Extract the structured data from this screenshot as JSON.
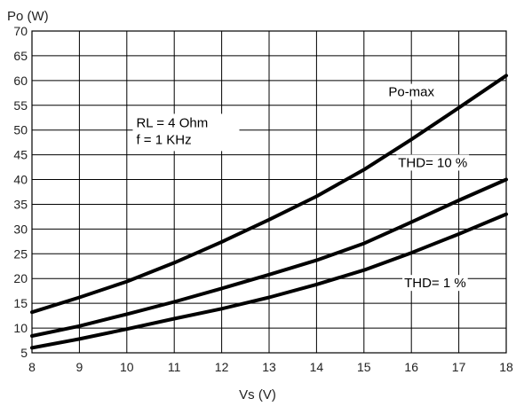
{
  "chart_data": {
    "type": "line",
    "xlabel": "Vs (V)",
    "ylabel": "Po (W)",
    "xlim": [
      8,
      18
    ],
    "ylim": [
      5,
      70
    ],
    "xticks": [
      8,
      9,
      10,
      11,
      12,
      13,
      14,
      15,
      16,
      17,
      18
    ],
    "yticks": [
      5,
      10,
      15,
      20,
      25,
      30,
      35,
      40,
      45,
      50,
      55,
      60,
      65,
      70
    ],
    "grid": true,
    "conditions": [
      "RL = 4 Ohm",
      "f = 1 KHz"
    ],
    "series": [
      {
        "name": "Po-max",
        "x": [
          8,
          9,
          10,
          11,
          12,
          13,
          14,
          15,
          16,
          17,
          18
        ],
        "y": [
          13.2,
          16.2,
          19.4,
          23.2,
          27.4,
          31.9,
          36.6,
          42.0,
          48.1,
          54.5,
          61.0
        ]
      },
      {
        "name": "THD= 10 %",
        "x": [
          8,
          9,
          10,
          11,
          12,
          13,
          14,
          15,
          16,
          17,
          18
        ],
        "y": [
          8.4,
          10.4,
          12.8,
          15.3,
          18.0,
          20.8,
          23.7,
          27.1,
          31.4,
          35.8,
          40.0
        ]
      },
      {
        "name": "THD= 1 %",
        "x": [
          8,
          9,
          10,
          11,
          12,
          13,
          14,
          15,
          16,
          17,
          18
        ],
        "y": [
          6.0,
          7.8,
          9.8,
          11.9,
          13.9,
          16.2,
          18.8,
          21.7,
          25.2,
          29.0,
          33.0
        ]
      }
    ]
  }
}
